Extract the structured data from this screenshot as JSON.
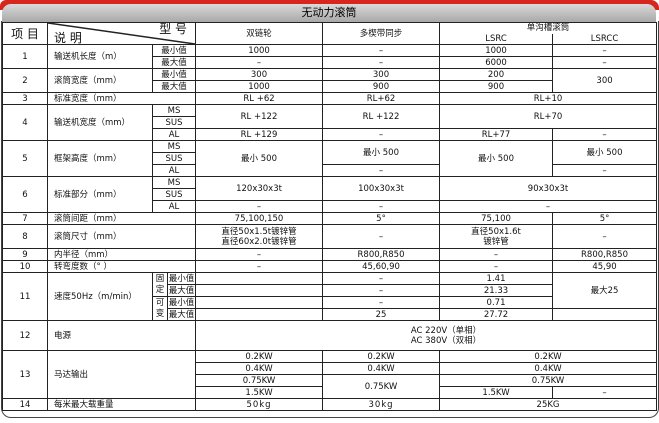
{
  "title": "无动力滚筒",
  "header": {
    "item": "项 目",
    "desc": "说 明",
    "model": "型 号",
    "cols": [
      "双链轮",
      "多楔带同步",
      "单沟槽滚筒"
    ],
    "sub_cols": [
      "LSRC",
      "LSRCC"
    ]
  },
  "labels": {
    "min": "最小值",
    "max": "最大值",
    "ms": "MS",
    "sus": "SUS",
    "al": "AL",
    "fixed": "固定",
    "variable": "可变"
  },
  "rows": {
    "r1": {
      "no": "1",
      "desc": "输送机长度（m）",
      "min": [
        "1000",
        "–",
        "1000",
        "–"
      ],
      "max": [
        "–",
        "–",
        "6000",
        "–"
      ]
    },
    "r2": {
      "no": "2",
      "desc": "滚筒宽度（mm）",
      "min": [
        "300",
        "300",
        "200",
        "300"
      ],
      "max": [
        "1000",
        "900",
        "900"
      ]
    },
    "r3": {
      "no": "3",
      "desc": "标准宽度（mm）",
      "vals": [
        "RL +62",
        "RL+62",
        "RL+10"
      ]
    },
    "r4": {
      "no": "4",
      "desc": "输送机宽度（mm）",
      "ms_sus": [
        "RL +122",
        "RL +122",
        "RL+70"
      ],
      "al": [
        "RL +129",
        "–",
        "RL+77",
        "–"
      ]
    },
    "r5": {
      "no": "5",
      "desc": "框架高度（mm）",
      "vals": [
        "最小 500",
        "最小 500",
        "最小 500",
        "最小 500"
      ],
      "al": [
        "–",
        "–"
      ]
    },
    "r6": {
      "no": "6",
      "desc": "标准部分（mm）",
      "ms_sus": [
        "120x30x3t",
        "100x30x3t",
        "90x30x3t"
      ],
      "al": [
        "–",
        "–",
        "–"
      ]
    },
    "r7": {
      "no": "7",
      "desc": "滚筒间距（mm）",
      "vals": [
        "75,100,150",
        "5°",
        "75,100",
        "5°"
      ]
    },
    "r8": {
      "no": "8",
      "desc": "滚筒尺寸（mm）",
      "c1": [
        "直径50x1.5t镀锌管",
        "直径60x2.0t镀锌管"
      ],
      "c2": "–",
      "c3": [
        "直径50x1.6t",
        "镀锌管"
      ],
      "c4": "–"
    },
    "r9": {
      "no": "9",
      "desc": "内半径（mm）",
      "vals": [
        "–",
        "R800,R850",
        "–",
        "R800,R850"
      ]
    },
    "r10": {
      "no": "10",
      "desc": "转弯度数（°  ）",
      "vals": [
        "–",
        "45,60,90",
        "–",
        "45,90"
      ]
    },
    "r11": {
      "no": "11",
      "desc": "速度50Hz（m/min）",
      "fixed_min": [
        "–",
        "1.41"
      ],
      "fixed_max": [
        "–",
        "21.33"
      ],
      "var_min": [
        "–",
        "0.71"
      ],
      "var_max": [
        "25",
        "27.72"
      ],
      "lsrcc": "最大25"
    },
    "r12": {
      "no": "12",
      "desc": "电源",
      "lines": [
        "AC 220V（单相）",
        "AC 380V（双相）"
      ]
    },
    "r13": {
      "no": "13",
      "desc": "马达输出",
      "c1": [
        "0.2KW",
        "0.4KW",
        "0.75KW",
        "1.5KW"
      ],
      "c2": [
        "0.2KW",
        "0.4KW",
        "0.75KW"
      ],
      "c34": [
        "0.2KW",
        "0.4KW",
        "0.75KW"
      ],
      "c3_last": "1.5KW",
      "c4_last": "–"
    },
    "r14": {
      "no": "14",
      "desc": "每米最大载重量",
      "vals": [
        "50kg",
        "30kg",
        "25KG"
      ]
    }
  },
  "colors": {
    "accent_red": "#d7261e",
    "title_bar": "#bdbdbd"
  }
}
